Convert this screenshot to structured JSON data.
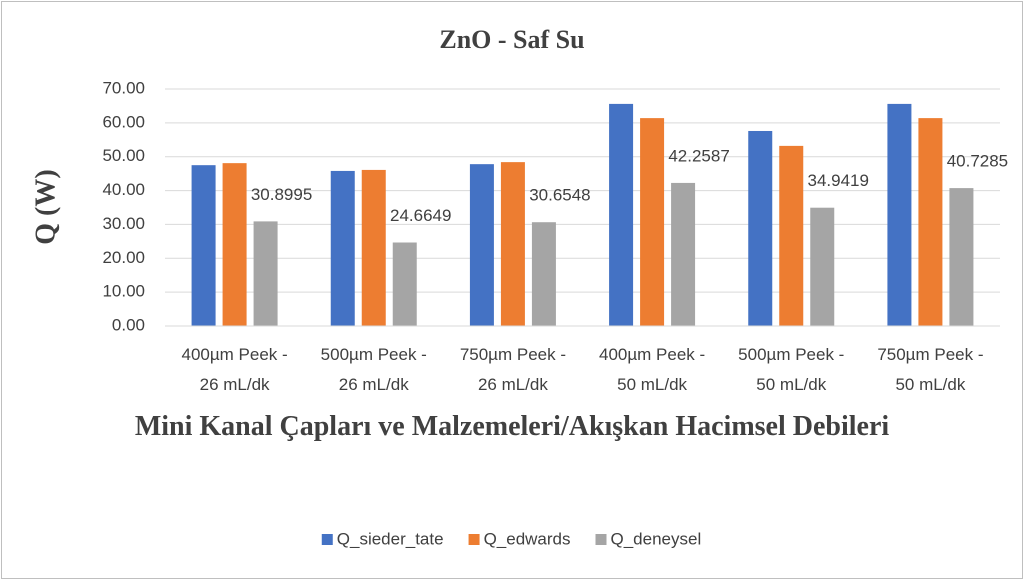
{
  "chart_data": {
    "type": "bar",
    "title": "ZnO - Saf Su",
    "x_label": "Mini Kanal Çapları ve Malzemeleri/Akışkan Hacimsel Debileri",
    "y_label": "Q (W)",
    "categories": [
      "400µm Peek - 26 mL/dk",
      "500µm Peek - 26 mL/dk",
      "750µm Peek - 26 mL/dk",
      "400µm Peek - 50 mL/dk",
      "500µm Peek - 50 mL/dk",
      "750µm Peek - 50 mL/dk"
    ],
    "series": [
      {
        "name": "Q_sieder_tate",
        "color": "#4472c4",
        "values": [
          47.5,
          45.8,
          47.8,
          65.6,
          57.6,
          65.6
        ]
      },
      {
        "name": "Q_edwards",
        "color": "#ed7d31",
        "values": [
          48.1,
          46.1,
          48.4,
          61.4,
          53.2,
          61.4
        ]
      },
      {
        "name": "Q_deneysel",
        "color": "#a5a5a5",
        "values": [
          30.8995,
          24.6649,
          30.6548,
          42.2587,
          34.9419,
          40.7285
        ],
        "data_labels": true
      }
    ],
    "ylim": [
      0,
      70
    ],
    "yticks": [
      {
        "value": 0,
        "label": "0.00"
      },
      {
        "value": 10,
        "label": "10.00"
      },
      {
        "value": 20,
        "label": "20.00"
      },
      {
        "value": 30,
        "label": "30.00"
      },
      {
        "value": 40,
        "label": "40.00"
      },
      {
        "value": 50,
        "label": "50.00"
      },
      {
        "value": 60,
        "label": "60.00"
      },
      {
        "value": 70,
        "label": "70.00"
      }
    ],
    "grid": true,
    "legend": "bottom"
  }
}
